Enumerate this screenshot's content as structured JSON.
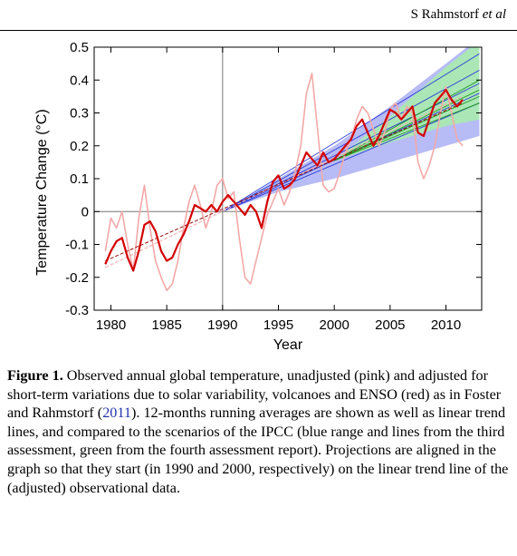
{
  "header": {
    "author": "S Rahmstorf",
    "etal": "et al"
  },
  "chart_data": {
    "type": "line",
    "ylabel": "Temperature Change (°C)",
    "xlabel": "Year",
    "xlim": [
      1978.5,
      2013.2
    ],
    "ylim": [
      -0.3,
      0.5
    ],
    "xticks": [
      1980,
      1985,
      1990,
      1995,
      2000,
      2005,
      2010
    ],
    "yticks": [
      -0.3,
      -0.2,
      -0.1,
      0,
      0.1,
      0.2,
      0.3,
      0.4,
      0.5
    ],
    "ref_year": 1990,
    "colors": {
      "unadjusted": "#f4a8a8",
      "adjusted": "#d40000",
      "ipcc_tar": "#aab0f5",
      "ipcc_ar4": "#a6f0a6",
      "tar_lines": "#2a3ad8",
      "ar4_lines": "#1f9a1f"
    },
    "ipcc_tar_range": {
      "x": [
        1990,
        1995,
        2000,
        2005,
        2010,
        2013
      ],
      "lower": [
        0.0,
        0.06,
        0.1,
        0.15,
        0.2,
        0.23
      ],
      "upper": [
        0.0,
        0.1,
        0.2,
        0.32,
        0.45,
        0.53
      ]
    },
    "ipcc_ar4_range": {
      "x": [
        2000,
        2005,
        2010,
        2013
      ],
      "lower": [
        0.155,
        0.21,
        0.26,
        0.28
      ],
      "upper": [
        0.155,
        0.29,
        0.44,
        0.52
      ]
    },
    "tar_scenarios": [
      {
        "x": [
          1990,
          2013
        ],
        "y": [
          0.0,
          0.48
        ]
      },
      {
        "x": [
          1990,
          2013
        ],
        "y": [
          0.0,
          0.43
        ]
      },
      {
        "x": [
          1990,
          2013
        ],
        "y": [
          0.0,
          0.39
        ]
      },
      {
        "x": [
          1990,
          2013
        ],
        "y": [
          0.0,
          0.36
        ]
      },
      {
        "x": [
          1990,
          2013
        ],
        "y": [
          0.0,
          0.33
        ]
      }
    ],
    "ar4_scenarios": [
      {
        "x": [
          2000,
          2013
        ],
        "y": [
          0.155,
          0.4
        ]
      },
      {
        "x": [
          2000,
          2013
        ],
        "y": [
          0.155,
          0.37
        ]
      },
      {
        "x": [
          2000,
          2013
        ],
        "y": [
          0.155,
          0.35
        ]
      },
      {
        "x": [
          2000,
          2013
        ],
        "y": [
          0.155,
          0.33
        ]
      }
    ],
    "trend_lines": [
      {
        "x": [
          1979.5,
          2011.5
        ],
        "y": [
          -0.17,
          0.35
        ]
      },
      {
        "x": [
          1979.5,
          2011.5
        ],
        "y": [
          -0.15,
          0.33
        ]
      }
    ],
    "unadjusted": {
      "x": [
        1979.5,
        1980,
        1980.5,
        1981,
        1981.5,
        1982,
        1982.5,
        1983,
        1983.5,
        1984,
        1984.5,
        1985,
        1985.5,
        1986,
        1986.5,
        1987,
        1987.5,
        1988,
        1988.5,
        1989,
        1989.5,
        1990,
        1990.5,
        1991,
        1991.5,
        1992,
        1992.5,
        1993,
        1993.5,
        1994,
        1994.5,
        1995,
        1995.5,
        1996,
        1996.5,
        1997,
        1997.5,
        1998,
        1998.5,
        1999,
        1999.5,
        2000,
        2000.5,
        2001,
        2001.5,
        2002,
        2002.5,
        2003,
        2003.5,
        2004,
        2004.5,
        2005,
        2005.5,
        2006,
        2006.5,
        2007,
        2007.5,
        2008,
        2008.5,
        2009,
        2009.5,
        2010,
        2010.5,
        2011,
        2011.5
      ],
      "y": [
        -0.12,
        -0.02,
        -0.05,
        0.0,
        -0.1,
        -0.18,
        -0.02,
        0.08,
        -0.05,
        -0.15,
        -0.2,
        -0.24,
        -0.22,
        -0.15,
        -0.05,
        0.03,
        0.08,
        0.02,
        -0.05,
        0.0,
        0.08,
        0.1,
        0.04,
        0.06,
        -0.08,
        -0.2,
        -0.22,
        -0.15,
        -0.08,
        -0.01,
        0.03,
        0.07,
        0.02,
        0.06,
        0.12,
        0.2,
        0.36,
        0.42,
        0.25,
        0.08,
        0.06,
        0.07,
        0.12,
        0.18,
        0.22,
        0.28,
        0.32,
        0.3,
        0.25,
        0.2,
        0.24,
        0.31,
        0.33,
        0.28,
        0.32,
        0.3,
        0.15,
        0.1,
        0.14,
        0.2,
        0.3,
        0.38,
        0.3,
        0.22,
        0.2
      ]
    },
    "adjusted": {
      "x": [
        1979.5,
        1980,
        1980.5,
        1981,
        1981.5,
        1982,
        1982.5,
        1983,
        1983.5,
        1984,
        1984.5,
        1985,
        1985.5,
        1986,
        1986.5,
        1987,
        1987.5,
        1988,
        1988.5,
        1989,
        1989.5,
        1990,
        1990.5,
        1991,
        1991.5,
        1992,
        1992.5,
        1993,
        1993.5,
        1994,
        1994.5,
        1995,
        1995.5,
        1996,
        1996.5,
        1997,
        1997.5,
        1998,
        1998.5,
        1999,
        1999.5,
        2000,
        2000.5,
        2001,
        2001.5,
        2002,
        2002.5,
        2003,
        2003.5,
        2004,
        2004.5,
        2005,
        2005.5,
        2006,
        2006.5,
        2007,
        2007.5,
        2008,
        2008.5,
        2009,
        2009.5,
        2010,
        2010.5,
        2011,
        2011.5
      ],
      "y": [
        -0.16,
        -0.12,
        -0.09,
        -0.08,
        -0.14,
        -0.18,
        -0.12,
        -0.04,
        -0.03,
        -0.06,
        -0.12,
        -0.15,
        -0.14,
        -0.1,
        -0.07,
        -0.03,
        0.02,
        0.01,
        0.0,
        0.02,
        0.0,
        0.03,
        0.05,
        0.03,
        0.01,
        -0.01,
        0.02,
        0.0,
        -0.05,
        0.03,
        0.09,
        0.11,
        0.07,
        0.08,
        0.1,
        0.14,
        0.18,
        0.16,
        0.14,
        0.18,
        0.15,
        0.16,
        0.18,
        0.2,
        0.22,
        0.26,
        0.28,
        0.24,
        0.2,
        0.23,
        0.27,
        0.31,
        0.3,
        0.28,
        0.3,
        0.32,
        0.24,
        0.23,
        0.28,
        0.33,
        0.35,
        0.37,
        0.34,
        0.32,
        0.34
      ]
    }
  },
  "caption": {
    "label": "Figure 1.",
    "text_a": "Observed annual global temperature, unadjusted (pink) and adjusted for short-term variations due to solar variability, volcanoes and ENSO (red) as in Foster and Rahmstorf (",
    "cite": "2011",
    "text_b": "). 12-months running averages are shown as well as linear trend lines, and compared to the scenarios of the IPCC (blue range and lines from the third assessment, green from the fourth assessment report). Projections are aligned in the graph so that they start (in 1990 and 2000, respectively) on the linear trend line of the (adjusted) observational data."
  }
}
